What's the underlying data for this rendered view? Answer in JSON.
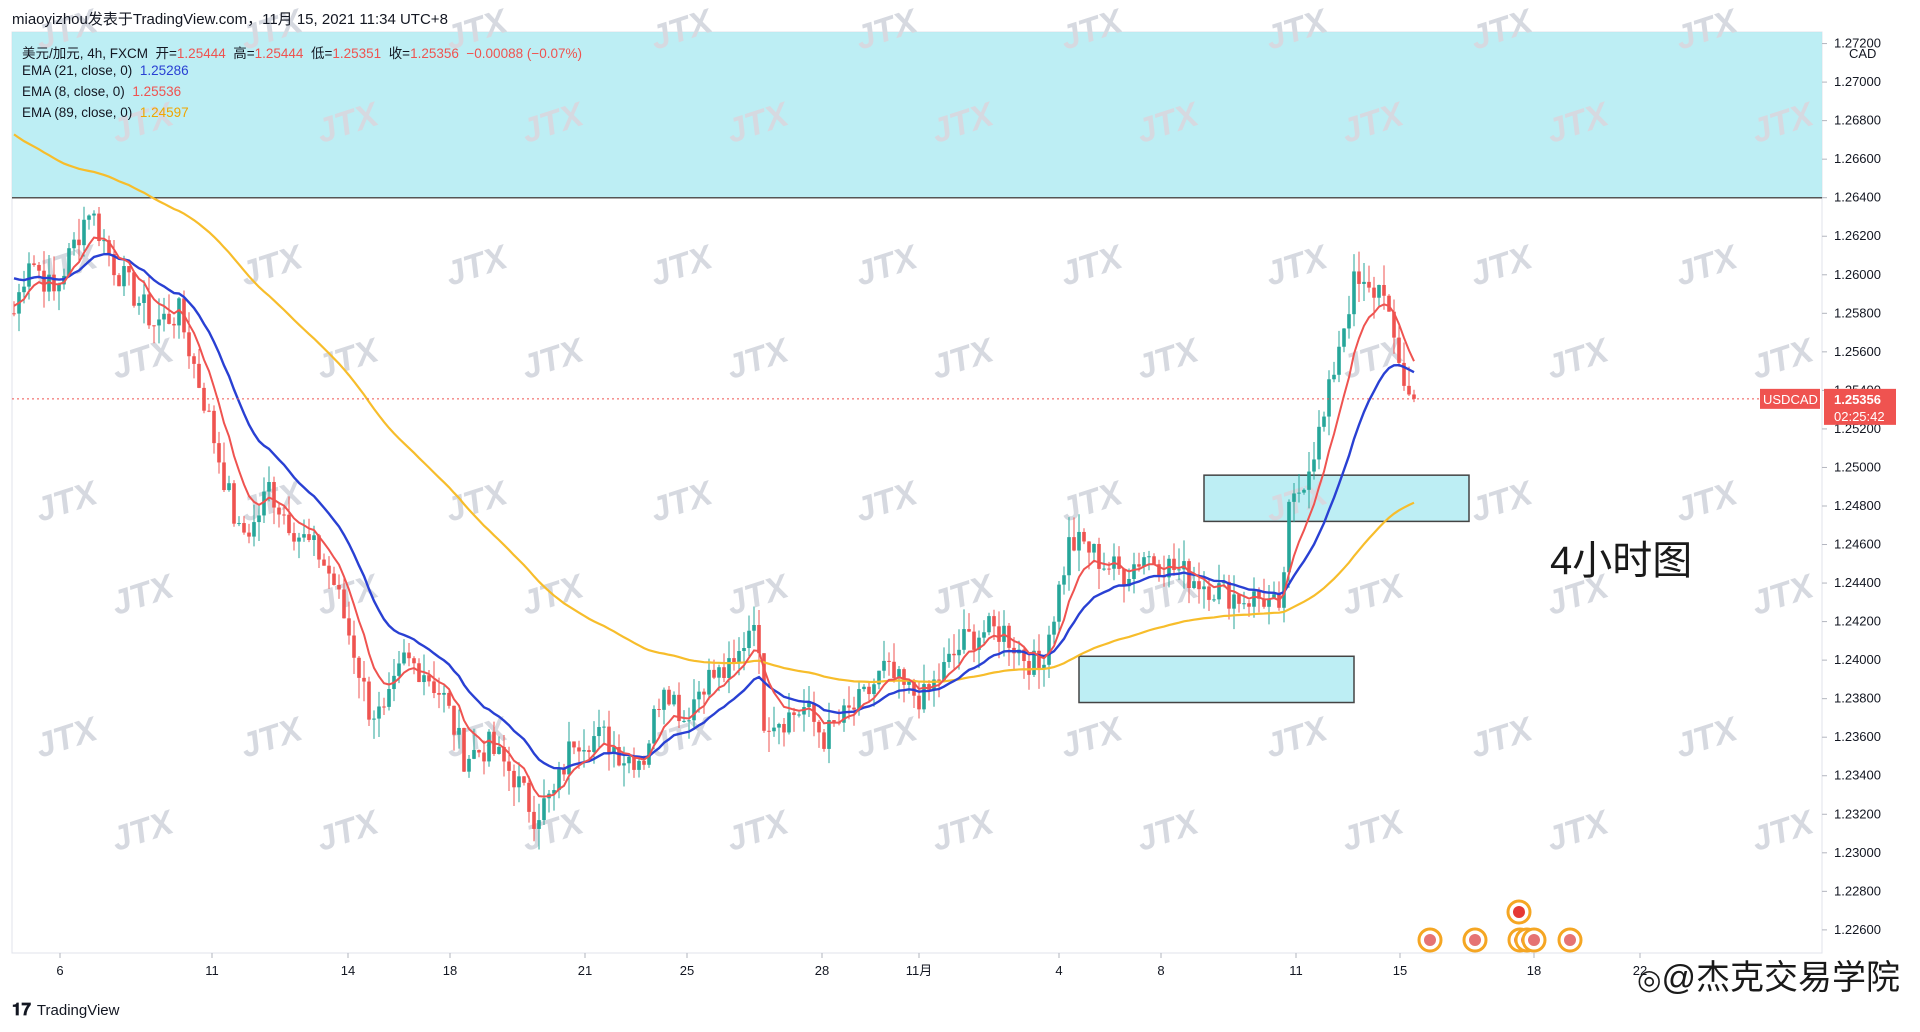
{
  "header": {
    "publisher": "miaoyizhou发表于TradingView.com，11月 15, 2021 11:34 UTC+8"
  },
  "legend": {
    "symbol_line": {
      "symbol": "美元/加元, 4h, FXCM",
      "open_label": "开=",
      "open": "1.25444",
      "high_label": "高=",
      "high": "1.25444",
      "low_label": "低=",
      "low": "1.25351",
      "close_label": "收=",
      "close": "1.25356",
      "change": "−0.00088 (−0.07%)"
    },
    "ema21": {
      "label": "EMA (21, close, 0)",
      "value": "1.25286"
    },
    "ema8": {
      "label": "EMA (8, close, 0)",
      "value": "1.25536"
    },
    "ema89": {
      "label": "EMA (89, close, 0)",
      "value": "1.24597"
    }
  },
  "annotation": "4小时图",
  "price_axis": {
    "currency": "CAD",
    "last_symbol": "USDCAD",
    "last_price": "1.25356",
    "countdown": "02:25:42"
  },
  "footer": {
    "brand": "TradingView"
  },
  "brand_watermark": "@杰克交易学院",
  "repeat_watermark": "JTX",
  "colors": {
    "up": "#26a69a",
    "down": "#ef5350",
    "ema8": "#ef5350",
    "ema21": "#2940d3",
    "ema89": "#f7bd2b",
    "zone": "#b2ebf2"
  },
  "chart_data": {
    "type": "candlestick",
    "timeframe": "4h",
    "y_ticks": [
      1.226,
      1.228,
      1.23,
      1.232,
      1.234,
      1.236,
      1.238,
      1.24,
      1.242,
      1.244,
      1.246,
      1.248,
      1.25,
      1.252,
      1.254,
      1.256,
      1.258,
      1.26,
      1.262,
      1.264,
      1.266,
      1.268,
      1.27,
      1.272
    ],
    "ylim": [
      1.2248,
      1.2726
    ],
    "x_ticks": [
      "6",
      "11",
      "14",
      "18",
      "21",
      "25",
      "28",
      "11月",
      "4",
      "8",
      "11",
      "15",
      "18",
      "22"
    ],
    "zones": [
      {
        "top": 1.2726,
        "bottom": 1.264
      },
      {
        "top": 1.2496,
        "bottom": 1.2472
      },
      {
        "top": 1.2402,
        "bottom": 1.2378
      }
    ],
    "horizontal_line": 1.264,
    "last_price_line": 1.25356,
    "anchors": [
      [
        0,
        1.258
      ],
      [
        3,
        1.261
      ],
      [
        8,
        1.259
      ],
      [
        15,
        1.2635
      ],
      [
        20,
        1.2605
      ],
      [
        28,
        1.2575
      ],
      [
        33,
        1.258
      ],
      [
        38,
        1.2535
      ],
      [
        41,
        1.2505
      ],
      [
        45,
        1.2465
      ],
      [
        48,
        1.247
      ],
      [
        51,
        1.249
      ],
      [
        53,
        1.248
      ],
      [
        57,
        1.2465
      ],
      [
        61,
        1.2455
      ],
      [
        64,
        1.244
      ],
      [
        68,
        1.2405
      ],
      [
        71,
        1.2375
      ],
      [
        74,
        1.237
      ],
      [
        78,
        1.24
      ],
      [
        82,
        1.2395
      ],
      [
        86,
        1.238
      ],
      [
        90,
        1.235
      ],
      [
        95,
        1.2355
      ],
      [
        100,
        1.234
      ],
      [
        104,
        1.232
      ],
      [
        108,
        1.233
      ],
      [
        112,
        1.236
      ],
      [
        118,
        1.236
      ],
      [
        122,
        1.235
      ],
      [
        126,
        1.235
      ],
      [
        130,
        1.239
      ],
      [
        134,
        1.237
      ],
      [
        138,
        1.239
      ],
      [
        144,
        1.2395
      ],
      [
        148,
        1.2425
      ],
      [
        150,
        1.237
      ],
      [
        154,
        1.237
      ],
      [
        158,
        1.2375
      ],
      [
        162,
        1.236
      ],
      [
        166,
        1.237
      ],
      [
        170,
        1.238
      ],
      [
        174,
        1.2395
      ],
      [
        178,
        1.2385
      ],
      [
        182,
        1.238
      ],
      [
        186,
        1.2395
      ],
      [
        190,
        1.241
      ],
      [
        194,
        1.2415
      ],
      [
        198,
        1.2415
      ],
      [
        201,
        1.2405
      ],
      [
        205,
        1.2395
      ],
      [
        208,
        1.2425
      ],
      [
        211,
        1.246
      ],
      [
        214,
        1.246
      ],
      [
        218,
        1.245
      ],
      [
        222,
        1.2445
      ],
      [
        226,
        1.2455
      ],
      [
        230,
        1.245
      ],
      [
        234,
        1.2445
      ],
      [
        238,
        1.244
      ],
      [
        242,
        1.2435
      ],
      [
        246,
        1.2432
      ],
      [
        250,
        1.2432
      ],
      [
        252,
        1.2428
      ],
      [
        253,
        1.242
      ],
      [
        255,
        1.2475
      ],
      [
        258,
        1.2495
      ],
      [
        262,
        1.2525
      ],
      [
        265,
        1.2565
      ],
      [
        268,
        1.2595
      ],
      [
        271,
        1.259
      ],
      [
        274,
        1.2595
      ],
      [
        276,
        1.256
      ],
      [
        278,
        1.2545
      ],
      [
        280,
        1.2536
      ]
    ]
  }
}
